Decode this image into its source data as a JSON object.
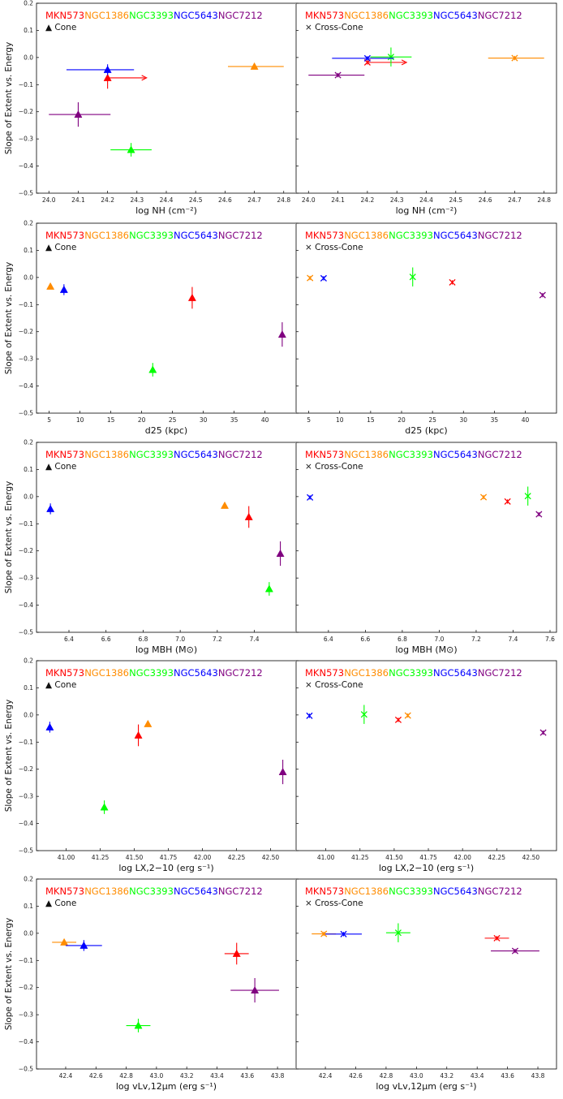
{
  "legend": {
    "galaxies": [
      {
        "name": "MKN573",
        "color": "#ff0000"
      },
      {
        "name": "NGC1386",
        "color": "#ff8c00"
      },
      {
        "name": "NGC3393",
        "color": "#00ff00"
      },
      {
        "name": "NGC5643",
        "color": "#0000ff"
      },
      {
        "name": "NGC7212",
        "color": "#800080"
      }
    ],
    "cone_label": "▲ Cone",
    "cross_label": "× Cross-Cone"
  },
  "y_axis_label": "Slope of Extent vs. Energy",
  "chart_data": [
    {
      "type": "scatter",
      "row": 0,
      "panel": "cone",
      "marker": "triangle",
      "xlabel": "log NH (cm⁻²)",
      "xlim": [
        23.98,
        24.82
      ],
      "ylim": [
        -0.5,
        0.2
      ],
      "xticks": [
        24.0,
        24.1,
        24.2,
        24.3,
        24.4,
        24.5,
        24.6,
        24.7,
        24.8
      ],
      "xtick_labels": [
        "24.0",
        "24.1",
        "24.2",
        "24.3",
        "24.4",
        "24.5",
        "24.6",
        "24.7",
        "24.8"
      ],
      "yticks": [
        -0.5,
        -0.4,
        -0.3,
        -0.2,
        -0.1,
        0.0,
        0.1,
        0.2
      ],
      "ytick_labels": [
        "−0.5",
        "−0.4",
        "−0.3",
        "−0.2",
        "−0.1",
        "0.0",
        "0.1",
        "0.2"
      ],
      "points": [
        {
          "galaxy": "MKN573",
          "x": 24.2,
          "y": -0.075,
          "yerr": 0.04,
          "xerr_arrow": 24.33
        },
        {
          "galaxy": "NGC1386",
          "x": 24.7,
          "y": -0.033,
          "yerr": 0.008,
          "xerr": [
            24.61,
            24.8
          ]
        },
        {
          "galaxy": "NGC3393",
          "x": 24.28,
          "y": -0.34,
          "yerr": 0.025,
          "xerr": [
            24.21,
            24.35
          ]
        },
        {
          "galaxy": "NGC5643",
          "x": 24.2,
          "y": -0.045,
          "yerr": 0.02,
          "xerr": [
            24.06,
            24.29
          ]
        },
        {
          "galaxy": "NGC7212",
          "x": 24.1,
          "y": -0.21,
          "yerr": 0.045,
          "xerr": [
            24.0,
            24.21
          ]
        }
      ]
    },
    {
      "type": "scatter",
      "row": 0,
      "panel": "cross",
      "marker": "x",
      "xlabel": "log NH (cm⁻²)",
      "xlim": [
        23.98,
        24.82
      ],
      "ylim": [
        -0.5,
        0.2
      ],
      "xticks": [
        24.0,
        24.1,
        24.2,
        24.3,
        24.4,
        24.5,
        24.6,
        24.7,
        24.8
      ],
      "xtick_labels": [
        "24.0",
        "24.1",
        "24.2",
        "24.3",
        "24.4",
        "24.5",
        "24.6",
        "24.7",
        "24.8"
      ],
      "yticks": [
        -0.5,
        -0.4,
        -0.3,
        -0.2,
        -0.1,
        0.0,
        0.1,
        0.2
      ],
      "points": [
        {
          "galaxy": "MKN573",
          "x": 24.2,
          "y": -0.018,
          "yerr": 0.008,
          "xerr_arrow": 24.33
        },
        {
          "galaxy": "NGC1386",
          "x": 24.7,
          "y": -0.002,
          "yerr": 0.008,
          "xerr": [
            24.61,
            24.8
          ]
        },
        {
          "galaxy": "NGC3393",
          "x": 24.28,
          "y": 0.002,
          "yerr": 0.035,
          "xerr": [
            24.21,
            24.35
          ]
        },
        {
          "galaxy": "NGC5643",
          "x": 24.2,
          "y": -0.003,
          "yerr": 0.008,
          "xerr": [
            24.08,
            24.29
          ]
        },
        {
          "galaxy": "NGC7212",
          "x": 24.1,
          "y": -0.065,
          "yerr": 0.008,
          "xerr": [
            24.0,
            24.19
          ]
        }
      ]
    },
    {
      "type": "scatter",
      "row": 1,
      "panel": "cone",
      "marker": "triangle",
      "xlabel": "d25 (kpc)",
      "xlim": [
        4.0,
        44.0
      ],
      "ylim": [
        -0.5,
        0.2
      ],
      "xticks": [
        5,
        10,
        15,
        20,
        25,
        30,
        35,
        40
      ],
      "xtick_labels": [
        "5",
        "10",
        "15",
        "20",
        "25",
        "30",
        "35",
        "40"
      ],
      "yticks": [
        -0.5,
        -0.4,
        -0.3,
        -0.2,
        -0.1,
        0.0,
        0.1,
        0.2
      ],
      "ytick_labels": [
        "−0.5",
        "−0.4",
        "−0.3",
        "−0.2",
        "−0.1",
        "0.0",
        "0.1",
        "0.2"
      ],
      "points": [
        {
          "galaxy": "MKN573",
          "x": 28.2,
          "y": -0.075,
          "yerr": 0.04
        },
        {
          "galaxy": "NGC1386",
          "x": 5.2,
          "y": -0.033,
          "yerr": 0.008
        },
        {
          "galaxy": "NGC3393",
          "x": 21.8,
          "y": -0.34,
          "yerr": 0.025
        },
        {
          "galaxy": "NGC5643",
          "x": 7.4,
          "y": -0.045,
          "yerr": 0.02
        },
        {
          "galaxy": "NGC7212",
          "x": 42.8,
          "y": -0.21,
          "yerr": 0.045
        }
      ]
    },
    {
      "type": "scatter",
      "row": 1,
      "panel": "cross",
      "marker": "x",
      "xlabel": "d25 (kpc)",
      "xlim": [
        4.0,
        44.0
      ],
      "ylim": [
        -0.5,
        0.2
      ],
      "xticks": [
        5,
        10,
        15,
        20,
        25,
        30,
        35,
        40
      ],
      "xtick_labels": [
        "5",
        "10",
        "15",
        "20",
        "25",
        "30",
        "35",
        "40"
      ],
      "yticks": [
        -0.5,
        -0.4,
        -0.3,
        -0.2,
        -0.1,
        0.0,
        0.1,
        0.2
      ],
      "points": [
        {
          "galaxy": "MKN573",
          "x": 28.2,
          "y": -0.018,
          "yerr": 0.008
        },
        {
          "galaxy": "NGC1386",
          "x": 5.2,
          "y": -0.002,
          "yerr": 0.008
        },
        {
          "galaxy": "NGC3393",
          "x": 21.8,
          "y": 0.002,
          "yerr": 0.035
        },
        {
          "galaxy": "NGC5643",
          "x": 7.4,
          "y": -0.003,
          "yerr": 0.008
        },
        {
          "galaxy": "NGC7212",
          "x": 42.8,
          "y": -0.065,
          "yerr": 0.008
        }
      ]
    },
    {
      "type": "scatter",
      "row": 2,
      "panel": "cone",
      "marker": "triangle",
      "xlabel": "log MBH (M⊙)",
      "xlim": [
        6.26,
        7.59
      ],
      "ylim": [
        -0.5,
        0.2
      ],
      "xticks": [
        6.4,
        6.6,
        6.8,
        7.0,
        7.2,
        7.4
      ],
      "xtick_labels": [
        "6.4",
        "6.6",
        "6.8",
        "7.0",
        "7.2",
        "7.4"
      ],
      "yticks": [
        -0.5,
        -0.4,
        -0.3,
        -0.2,
        -0.1,
        0.0,
        0.1,
        0.2
      ],
      "ytick_labels": [
        "−0.5",
        "−0.4",
        "−0.3",
        "−0.2",
        "−0.1",
        "0.0",
        "0.1",
        "0.2"
      ],
      "points": [
        {
          "galaxy": "MKN573",
          "x": 7.37,
          "y": -0.075,
          "yerr": 0.04
        },
        {
          "galaxy": "NGC1386",
          "x": 7.24,
          "y": -0.033,
          "yerr": 0.008
        },
        {
          "galaxy": "NGC3393",
          "x": 7.48,
          "y": -0.34,
          "yerr": 0.025
        },
        {
          "galaxy": "NGC5643",
          "x": 6.3,
          "y": -0.045,
          "yerr": 0.02
        },
        {
          "galaxy": "NGC7212",
          "x": 7.54,
          "y": -0.21,
          "yerr": 0.045
        }
      ]
    },
    {
      "type": "scatter",
      "row": 2,
      "panel": "cross",
      "marker": "x",
      "xlabel": "log MBH (M⊙)",
      "xlim": [
        6.26,
        7.6
      ],
      "ylim": [
        -0.5,
        0.2
      ],
      "xticks": [
        6.4,
        6.6,
        6.8,
        7.0,
        7.2,
        7.4,
        7.6
      ],
      "xtick_labels": [
        "6.4",
        "6.6",
        "6.8",
        "7.0",
        "7.2",
        "7.4",
        "7.6"
      ],
      "yticks": [
        -0.5,
        -0.4,
        -0.3,
        -0.2,
        -0.1,
        0.0,
        0.1,
        0.2
      ],
      "points": [
        {
          "galaxy": "MKN573",
          "x": 7.37,
          "y": -0.018,
          "yerr": 0.008
        },
        {
          "galaxy": "NGC1386",
          "x": 7.24,
          "y": -0.002,
          "yerr": 0.008
        },
        {
          "galaxy": "NGC3393",
          "x": 7.48,
          "y": 0.002,
          "yerr": 0.035
        },
        {
          "galaxy": "NGC5643",
          "x": 6.3,
          "y": -0.003,
          "yerr": 0.008
        },
        {
          "galaxy": "NGC7212",
          "x": 7.54,
          "y": -0.065,
          "yerr": 0.008
        }
      ]
    },
    {
      "type": "scatter",
      "row": 3,
      "panel": "cone",
      "marker": "triangle",
      "xlabel": "log LX,2−10 (erg s⁻¹)",
      "xlim": [
        40.83,
        42.64
      ],
      "ylim": [
        -0.5,
        0.2
      ],
      "xticks": [
        41.0,
        41.25,
        41.5,
        41.75,
        42.0,
        42.25,
        42.5
      ],
      "xtick_labels": [
        "41.00",
        "41.25",
        "41.50",
        "41.75",
        "42.00",
        "42.25",
        "42.50"
      ],
      "yticks": [
        -0.5,
        -0.4,
        -0.3,
        -0.2,
        -0.1,
        0.0,
        0.1,
        0.2
      ],
      "ytick_labels": [
        "−0.5",
        "−0.4",
        "−0.3",
        "−0.2",
        "−0.1",
        "0.0",
        "0.1",
        "0.2"
      ],
      "points": [
        {
          "galaxy": "MKN573",
          "x": 41.53,
          "y": -0.075,
          "yerr": 0.04
        },
        {
          "galaxy": "NGC1386",
          "x": 41.6,
          "y": -0.033,
          "yerr": 0.008
        },
        {
          "galaxy": "NGC3393",
          "x": 41.28,
          "y": -0.34,
          "yerr": 0.025
        },
        {
          "galaxy": "NGC5643",
          "x": 40.88,
          "y": -0.045,
          "yerr": 0.02
        },
        {
          "galaxy": "NGC7212",
          "x": 42.59,
          "y": -0.21,
          "yerr": 0.045
        }
      ]
    },
    {
      "type": "scatter",
      "row": 3,
      "panel": "cross",
      "marker": "x",
      "xlabel": "log LX,2−10 (erg s⁻¹)",
      "xlim": [
        40.83,
        42.64
      ],
      "ylim": [
        -0.5,
        0.2
      ],
      "xticks": [
        41.0,
        41.25,
        41.5,
        41.75,
        42.0,
        42.25,
        42.5
      ],
      "xtick_labels": [
        "41.00",
        "41.25",
        "41.50",
        "41.75",
        "42.00",
        "42.25",
        "42.50"
      ],
      "yticks": [
        -0.5,
        -0.4,
        -0.3,
        -0.2,
        -0.1,
        0.0,
        0.1,
        0.2
      ],
      "points": [
        {
          "galaxy": "MKN573",
          "x": 41.53,
          "y": -0.018,
          "yerr": 0.008
        },
        {
          "galaxy": "NGC1386",
          "x": 41.6,
          "y": -0.002,
          "yerr": 0.008
        },
        {
          "galaxy": "NGC3393",
          "x": 41.28,
          "y": 0.002,
          "yerr": 0.035
        },
        {
          "galaxy": "NGC5643",
          "x": 40.88,
          "y": -0.003,
          "yerr": 0.008
        },
        {
          "galaxy": "NGC7212",
          "x": 42.59,
          "y": -0.065,
          "yerr": 0.008
        }
      ]
    },
    {
      "type": "scatter",
      "row": 4,
      "panel": "cone",
      "marker": "triangle",
      "xlabel": "log vLv,12μm (erg s⁻¹)",
      "xlim": [
        42.25,
        43.88
      ],
      "ylim": [
        -0.5,
        0.2
      ],
      "xticks": [
        42.4,
        42.6,
        42.8,
        43.0,
        43.2,
        43.4,
        43.6,
        43.8
      ],
      "xtick_labels": [
        "42.4",
        "42.6",
        "42.8",
        "43.0",
        "43.2",
        "43.4",
        "43.6",
        "43.8"
      ],
      "yticks": [
        -0.5,
        -0.4,
        -0.3,
        -0.2,
        -0.1,
        0.0,
        0.1,
        0.2
      ],
      "ytick_labels": [
        "−0.5",
        "−0.4",
        "−0.3",
        "−0.2",
        "−0.1",
        "0.0",
        "0.1",
        "0.2"
      ],
      "points": [
        {
          "galaxy": "MKN573",
          "x": 43.53,
          "y": -0.075,
          "yerr": 0.04,
          "xerr": [
            43.45,
            43.61
          ]
        },
        {
          "galaxy": "NGC1386",
          "x": 42.39,
          "y": -0.033,
          "yerr": 0.008,
          "xerr": [
            42.31,
            42.47
          ]
        },
        {
          "galaxy": "NGC3393",
          "x": 42.88,
          "y": -0.34,
          "yerr": 0.025,
          "xerr": [
            42.8,
            42.96
          ]
        },
        {
          "galaxy": "NGC5643",
          "x": 42.52,
          "y": -0.045,
          "yerr": 0.02,
          "xerr": [
            42.4,
            42.64
          ]
        },
        {
          "galaxy": "NGC7212",
          "x": 43.65,
          "y": -0.21,
          "yerr": 0.045,
          "xerr": [
            43.49,
            43.81
          ]
        }
      ]
    },
    {
      "type": "scatter",
      "row": 4,
      "panel": "cross",
      "marker": "x",
      "xlabel": "log vLv,12μm (erg s⁻¹)",
      "xlim": [
        42.25,
        43.88
      ],
      "ylim": [
        -0.5,
        0.2
      ],
      "xticks": [
        42.4,
        42.6,
        42.8,
        43.0,
        43.2,
        43.4,
        43.6,
        43.8
      ],
      "xtick_labels": [
        "42.4",
        "42.6",
        "42.8",
        "43.0",
        "43.2",
        "43.4",
        "43.6",
        "43.8"
      ],
      "yticks": [
        -0.5,
        -0.4,
        -0.3,
        -0.2,
        -0.1,
        0.0,
        0.1,
        0.2
      ],
      "points": [
        {
          "galaxy": "MKN573",
          "x": 43.53,
          "y": -0.018,
          "yerr": 0.008,
          "xerr": [
            43.45,
            43.61
          ]
        },
        {
          "galaxy": "NGC1386",
          "x": 42.39,
          "y": -0.002,
          "yerr": 0.008,
          "xerr": [
            42.31,
            42.47
          ]
        },
        {
          "galaxy": "NGC3393",
          "x": 42.88,
          "y": 0.002,
          "yerr": 0.035,
          "xerr": [
            42.8,
            42.96
          ]
        },
        {
          "galaxy": "NGC5643",
          "x": 42.52,
          "y": -0.003,
          "yerr": 0.008,
          "xerr": [
            42.4,
            42.64
          ]
        },
        {
          "galaxy": "NGC7212",
          "x": 43.65,
          "y": -0.065,
          "yerr": 0.008,
          "xerr": [
            43.49,
            43.81
          ]
        }
      ]
    }
  ]
}
